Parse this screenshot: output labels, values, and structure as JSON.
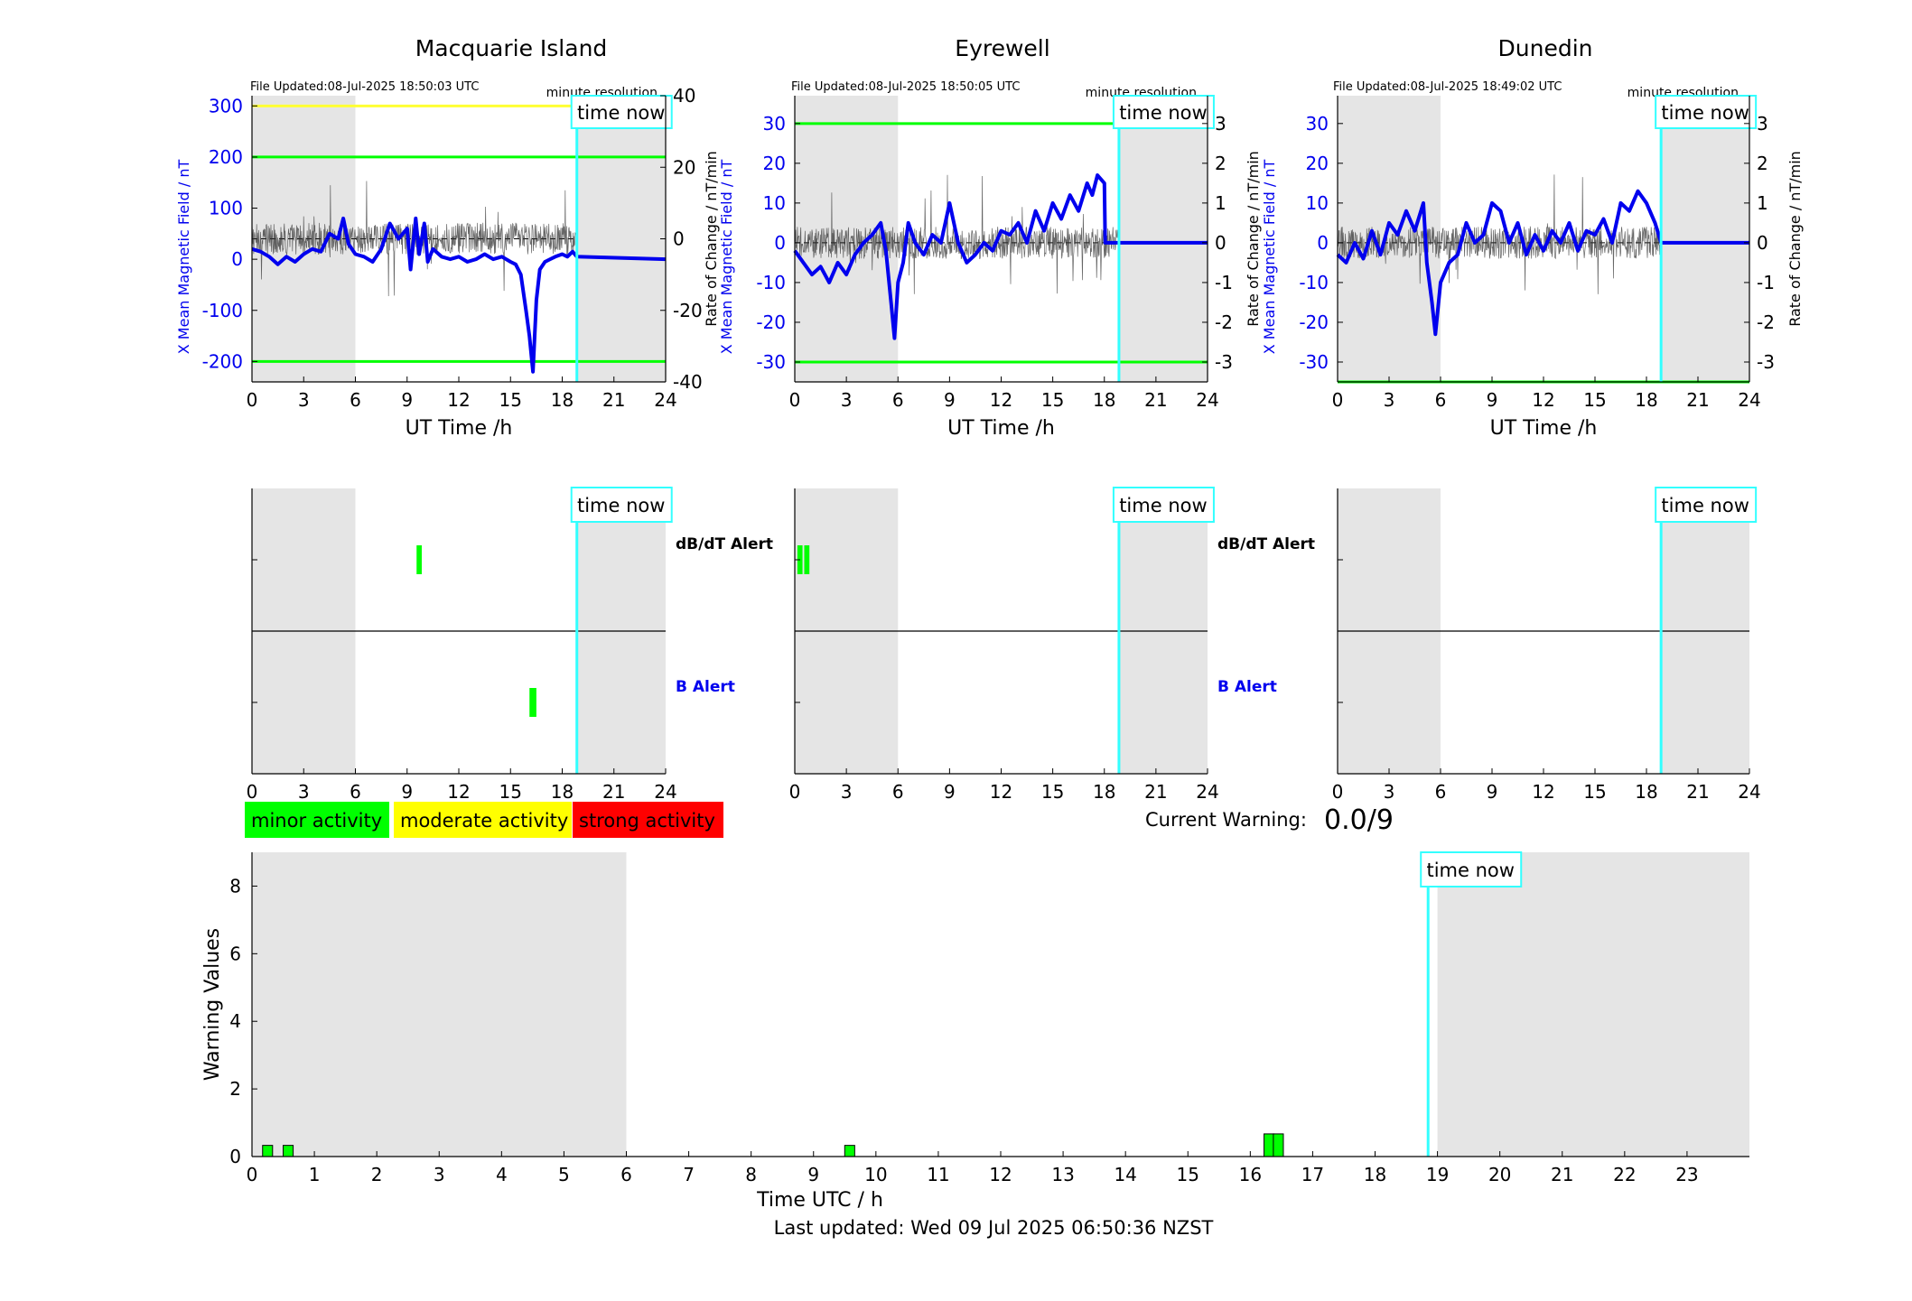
{
  "footer": {
    "last_updated": "Last updated: Wed 09 Jul 2025 06:50:36 NZST"
  },
  "labels": {
    "time_now": "time now",
    "minute_resolution": "minute resolution",
    "dbdt_alert": "dB/dT Alert",
    "b_alert": "B Alert",
    "ut_time_xlabel": "UT Time /h",
    "rate_ylabel": "Rate of Change / nT/min"
  },
  "colors": {
    "shade": "#e5e5e5",
    "time_now": "#33ffff",
    "mean_line": "#0000ee",
    "axis_blue": "#0000ee",
    "threshold_green": "#00ff00",
    "threshold_yellow": "#ffff33",
    "minor": "#00ff00",
    "moderate": "#ffff00",
    "strong": "#ff0000"
  },
  "legend": [
    {
      "label": "minor activity",
      "color": "#00ff00"
    },
    {
      "label": "moderate activity",
      "color": "#ffff00"
    },
    {
      "label": "strong activity",
      "color": "#ff0000"
    }
  ],
  "current_warning": {
    "label": "Current Warning:",
    "value": "0.0/9"
  },
  "chart_data": [
    {
      "type": "line",
      "title": "Macquarie Island",
      "file_updated": "File Updated:08-Jul-2025 18:50:03 UTC",
      "xlabel": "UT Time /h",
      "ylabel": "X Mean Magnetic Field / nT",
      "y2label": "Rate of Change / nT/min",
      "xlim": [
        0,
        24
      ],
      "xticks": [
        0,
        3,
        6,
        9,
        12,
        15,
        18,
        21,
        24
      ],
      "ylim": [
        -240,
        320
      ],
      "yticks": [
        -200,
        -100,
        0,
        100,
        200,
        300
      ],
      "y2lim": [
        -40,
        40
      ],
      "y2ticks": [
        -40,
        -20,
        0,
        20,
        40
      ],
      "time_now": 18.85,
      "shaded": [
        [
          0,
          6
        ],
        [
          18.85,
          24
        ]
      ],
      "thresholds": [
        {
          "y": 300,
          "color": "#ffff33"
        },
        {
          "y": 200,
          "color": "#00ff00"
        },
        {
          "y": -200,
          "color": "#00ff00"
        }
      ],
      "series": [
        {
          "role": "mean",
          "x": [
            0,
            0.5,
            1,
            1.5,
            2,
            2.5,
            3,
            3.5,
            4,
            4.5,
            5,
            5.3,
            5.6,
            6,
            6.5,
            7,
            7.5,
            8,
            8.5,
            9,
            9.2,
            9.5,
            9.7,
            10,
            10.2,
            10.5,
            11,
            11.5,
            12,
            12.5,
            13,
            13.5,
            14,
            14.5,
            15,
            15.3,
            15.6,
            15.9,
            16.1,
            16.3,
            16.5,
            16.7,
            17,
            17.3,
            17.6,
            18,
            18.3,
            18.6,
            18.85,
            24
          ],
          "y": [
            20,
            15,
            5,
            -10,
            5,
            -5,
            10,
            20,
            15,
            50,
            40,
            80,
            30,
            10,
            5,
            -5,
            20,
            70,
            40,
            60,
            -20,
            80,
            10,
            70,
            -5,
            20,
            5,
            0,
            5,
            -5,
            0,
            10,
            0,
            5,
            -5,
            -10,
            -30,
            -100,
            -150,
            -220,
            -80,
            -20,
            -5,
            0,
            5,
            10,
            5,
            15,
            5,
            0
          ]
        },
        {
          "role": "rate_of_change",
          "color": "#000000"
        }
      ]
    },
    {
      "type": "line",
      "title": "Eyrewell",
      "file_updated": "File Updated:08-Jul-2025 18:50:05 UTC",
      "xlabel": "UT Time /h",
      "ylabel": "X Mean Magnetic Field / nT",
      "y2label": "Rate of Change / nT/min",
      "xlim": [
        0,
        24
      ],
      "xticks": [
        0,
        3,
        6,
        9,
        12,
        15,
        18,
        21,
        24
      ],
      "ylim": [
        -35,
        37
      ],
      "yticks": [
        -30,
        -20,
        -10,
        0,
        10,
        20,
        30
      ],
      "y2lim": [
        -3.5,
        3.7
      ],
      "y2ticks": [
        -3,
        -2,
        -1,
        0,
        1,
        2,
        3
      ],
      "time_now": 18.85,
      "shaded": [
        [
          0,
          6
        ],
        [
          18.85,
          24
        ]
      ],
      "thresholds": [
        {
          "y": 30,
          "color": "#00ff00"
        },
        {
          "y": -30,
          "color": "#00ff00"
        }
      ],
      "series": [
        {
          "role": "mean",
          "x": [
            0,
            0.5,
            1,
            1.5,
            2,
            2.5,
            3,
            3.5,
            4,
            4.5,
            5,
            5.3,
            5.6,
            5.8,
            6,
            6.3,
            6.6,
            7,
            7.5,
            8,
            8.5,
            9,
            9.5,
            10,
            10.5,
            11,
            11.5,
            12,
            12.5,
            13,
            13.5,
            14,
            14.5,
            15,
            15.5,
            16,
            16.5,
            17,
            17.3,
            17.6,
            18,
            18.05,
            18.85,
            24
          ],
          "y": [
            -2,
            -5,
            -8,
            -6,
            -10,
            -5,
            -8,
            -3,
            0,
            2,
            5,
            -2,
            -15,
            -24,
            -10,
            -5,
            5,
            0,
            -3,
            2,
            0,
            10,
            0,
            -5,
            -3,
            0,
            -2,
            3,
            2,
            5,
            0,
            8,
            3,
            10,
            6,
            12,
            8,
            15,
            12,
            17,
            15,
            0,
            0,
            0
          ]
        },
        {
          "role": "rate_of_change",
          "color": "#000000"
        }
      ]
    },
    {
      "type": "line",
      "title": "Dunedin",
      "file_updated": "File Updated:08-Jul-2025 18:49:02 UTC",
      "xlabel": "UT Time /h",
      "ylabel": "X Mean Magnetic Field / nT",
      "y2label": "Rate of Change / nT/min",
      "xlim": [
        0,
        24
      ],
      "xticks": [
        0,
        3,
        6,
        9,
        12,
        15,
        18,
        21,
        24
      ],
      "ylim": [
        -35,
        37
      ],
      "yticks": [
        -30,
        -20,
        -10,
        0,
        10,
        20,
        30
      ],
      "y2lim": [
        -3.5,
        3.7
      ],
      "y2ticks": [
        -3,
        -2,
        -1,
        0,
        1,
        2,
        3
      ],
      "time_now": 18.85,
      "shaded": [
        [
          0,
          6
        ],
        [
          18.85,
          24
        ]
      ],
      "thresholds": [
        {
          "y": -35,
          "color": "#00ff00"
        }
      ],
      "series": [
        {
          "role": "mean",
          "x": [
            0,
            0.5,
            1,
            1.5,
            2,
            2.5,
            3,
            3.5,
            4,
            4.5,
            5,
            5.2,
            5.5,
            5.7,
            6,
            6.5,
            7,
            7.5,
            8,
            8.5,
            9,
            9.5,
            10,
            10.5,
            11,
            11.5,
            12,
            12.5,
            13,
            13.5,
            14,
            14.5,
            15,
            15.5,
            16,
            16.5,
            17,
            17.5,
            18,
            18.5,
            18.85,
            24
          ],
          "y": [
            -3,
            -5,
            0,
            -4,
            3,
            -3,
            5,
            2,
            8,
            3,
            10,
            -5,
            -15,
            -23,
            -10,
            -5,
            -3,
            5,
            0,
            2,
            10,
            8,
            0,
            5,
            -3,
            2,
            -2,
            3,
            0,
            5,
            -2,
            3,
            2,
            6,
            0,
            10,
            8,
            13,
            10,
            5,
            0,
            0
          ]
        },
        {
          "role": "rate_of_change",
          "color": "#000000"
        }
      ]
    },
    {
      "type": "bar",
      "title": "",
      "categories": [
        "dB/dT Alert",
        "B Alert"
      ],
      "xlim": [
        0,
        24
      ],
      "xticks": [
        0,
        3,
        6,
        9,
        12,
        15,
        18,
        21,
        24
      ],
      "time_now": 18.85,
      "shaded": [
        [
          0,
          6
        ],
        [
          18.85,
          24
        ]
      ],
      "alerts": [
        {
          "row": "dB/dT Alert",
          "start": 9.55,
          "end": 9.85,
          "color": "#00ff00"
        },
        {
          "row": "B Alert",
          "start": 16.1,
          "end": 16.5,
          "color": "#00ff00"
        }
      ]
    },
    {
      "type": "bar",
      "title": "",
      "categories": [
        "dB/dT Alert",
        "B Alert"
      ],
      "xlim": [
        0,
        24
      ],
      "xticks": [
        0,
        3,
        6,
        9,
        12,
        15,
        18,
        21,
        24
      ],
      "time_now": 18.85,
      "shaded": [
        [
          0,
          6
        ],
        [
          18.85,
          24
        ]
      ],
      "alerts": [
        {
          "row": "dB/dT Alert",
          "start": 0.15,
          "end": 0.45,
          "color": "#00ff00"
        },
        {
          "row": "dB/dT Alert",
          "start": 0.55,
          "end": 0.85,
          "color": "#00ff00"
        }
      ]
    },
    {
      "type": "bar",
      "title": "",
      "categories": [
        "dB/dT Alert",
        "B Alert"
      ],
      "xlim": [
        0,
        24
      ],
      "xticks": [
        0,
        3,
        6,
        9,
        12,
        15,
        18,
        21,
        24
      ],
      "time_now": 18.85,
      "shaded": [
        [
          0,
          6
        ],
        [
          18.85,
          24
        ]
      ],
      "alerts": []
    },
    {
      "type": "bar",
      "title": "",
      "xlabel": "Time UTC / h",
      "ylabel": "Warning Values",
      "xlim": [
        0,
        24
      ],
      "xticks": [
        0,
        1,
        2,
        3,
        4,
        5,
        6,
        7,
        8,
        9,
        10,
        11,
        12,
        13,
        14,
        15,
        16,
        17,
        18,
        19,
        20,
        21,
        22,
        23
      ],
      "ylim": [
        0,
        9
      ],
      "yticks": [
        0,
        2,
        4,
        6,
        8
      ],
      "time_now": 18.85,
      "shaded": [
        [
          0,
          6
        ],
        [
          19,
          24
        ]
      ],
      "x": [
        0.25,
        0.58,
        9.58,
        16.3,
        16.45
      ],
      "values": [
        0.33,
        0.33,
        0.33,
        0.67,
        0.67
      ],
      "bar_width": 0.16
    }
  ]
}
